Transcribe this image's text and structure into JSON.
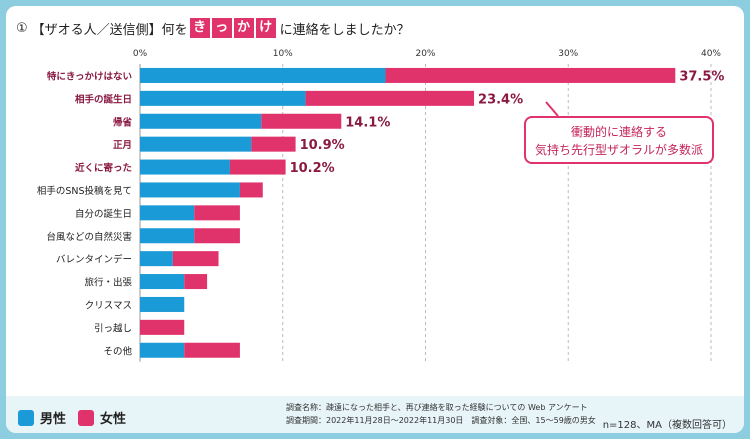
{
  "title": {
    "number": "①",
    "prefix": "【ザオる人／送信側】何を",
    "keyword_chars": [
      "き",
      "っ",
      "か",
      "け"
    ],
    "suffix": "に連絡をしましたか？"
  },
  "chart_data": {
    "type": "bar",
    "orientation": "horizontal",
    "stacked": true,
    "categories": [
      "特にきっかけはない",
      "相手の誕生日",
      "帰省",
      "正月",
      "近くに寄った",
      "相手のSNS投稿を見て",
      "自分の誕生日",
      "台風などの自然災害",
      "バレンタインデー",
      "旅行・出張",
      "クリスマス",
      "引っ越し",
      "その他"
    ],
    "highlighted_categories": [
      "特にきっかけはない",
      "相手の誕生日",
      "帰省",
      "正月",
      "近くに寄った"
    ],
    "series": [
      {
        "name": "男性",
        "color": "#1a9ad6",
        "values": [
          17.2,
          11.6,
          8.5,
          7.8,
          6.3,
          7.0,
          3.8,
          3.8,
          2.3,
          3.1,
          3.1,
          0,
          3.1
        ]
      },
      {
        "name": "女性",
        "color": "#e0336b",
        "values": [
          20.3,
          11.8,
          5.6,
          3.1,
          3.9,
          1.6,
          3.2,
          3.2,
          3.2,
          1.6,
          0,
          3.1,
          3.9
        ]
      }
    ],
    "total_labels": [
      "37.5%",
      "23.4%",
      "14.1%",
      "10.9%",
      "10.2%"
    ],
    "xaxis": {
      "min": 0,
      "max": 40,
      "ticks": [
        "0%",
        "10%",
        "20%",
        "30%",
        "40%"
      ]
    },
    "grid": true,
    "legend_position": "bottom-left",
    "callout": [
      "衝動的に連絡する",
      "気持ち先行型ザオラルが多数派"
    ]
  },
  "footer": {
    "survey_name": "調査名称：疎遠になった相手と、再び連絡を取った経験についての Web アンケート",
    "survey_period": "調査期間：2022年11月28日～2022年11月30日　調査対象：全国、15～59歳の男女",
    "sample": "n=128、MA（複数回答可）"
  },
  "colors": {
    "background": "#8ccde0",
    "male": "#1a9ad6",
    "female": "#e0336b",
    "highlight_label": "#8a1a42"
  }
}
